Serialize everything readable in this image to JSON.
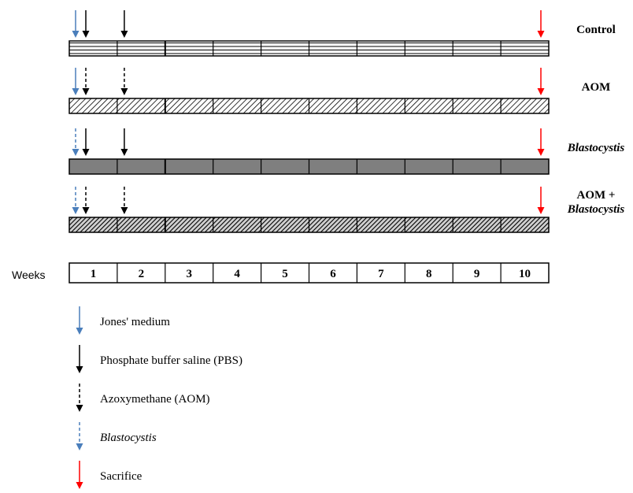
{
  "groups": [
    {
      "label": "Control",
      "label_lines": [
        "Control"
      ],
      "label_style": "bold",
      "fill": "lines",
      "arrows": [
        {
          "kind": "jones",
          "week": 1
        },
        {
          "kind": "pbs",
          "week": 1
        },
        {
          "kind": "pbs",
          "week": 2
        },
        {
          "kind": "sacrifice",
          "week": 10
        }
      ]
    },
    {
      "label": "AOM",
      "label_lines": [
        "AOM"
      ],
      "label_style": "bold",
      "fill": "hatch",
      "arrows": [
        {
          "kind": "jones",
          "week": 1
        },
        {
          "kind": "aom",
          "week": 1
        },
        {
          "kind": "aom",
          "week": 2
        },
        {
          "kind": "sacrifice",
          "week": 10
        }
      ]
    },
    {
      "label": "Blastocystis",
      "label_lines": [
        "Blastocystis"
      ],
      "label_style": "bold-italic",
      "fill": "gray",
      "arrows": [
        {
          "kind": "blastocystis",
          "week": 1
        },
        {
          "kind": "pbs",
          "week": 1
        },
        {
          "kind": "pbs",
          "week": 2
        },
        {
          "kind": "sacrifice",
          "week": 10
        }
      ]
    },
    {
      "label": "AOM + Blastocystis",
      "label_lines": [
        "AOM +",
        "Blastocystis"
      ],
      "label_style": "bold-mixed",
      "fill": "darkhatch",
      "arrows": [
        {
          "kind": "blastocystis",
          "week": 1
        },
        {
          "kind": "aom",
          "week": 1
        },
        {
          "kind": "aom",
          "week": 2
        },
        {
          "kind": "sacrifice",
          "week": 10
        }
      ]
    }
  ],
  "weeks_label": "Weeks",
  "weeks": [
    "1",
    "2",
    "3",
    "4",
    "5",
    "6",
    "7",
    "8",
    "9",
    "10"
  ],
  "legend": [
    {
      "kind": "jones",
      "label": "Jones' medium",
      "italic": false
    },
    {
      "kind": "pbs",
      "label": "Phosphate buffer saline (PBS)",
      "italic": false
    },
    {
      "kind": "aom",
      "label": "Azoxymethane (AOM)",
      "italic": false
    },
    {
      "kind": "blastocystis",
      "label": "Blastocystis",
      "italic": true
    },
    {
      "kind": "sacrifice",
      "label": "Sacrifice",
      "italic": false
    }
  ],
  "arrow_kinds": {
    "jones": {
      "color": "#4a7ebb",
      "dashed": false
    },
    "pbs": {
      "color": "#000000",
      "dashed": false
    },
    "aom": {
      "color": "#000000",
      "dashed": true
    },
    "blastocystis": {
      "color": "#4a7ebb",
      "dashed": true
    },
    "sacrifice": {
      "color": "#ff0000",
      "dashed": false
    }
  },
  "colors": {
    "bar_gray": "#7f7f7f",
    "border": "#000000"
  }
}
